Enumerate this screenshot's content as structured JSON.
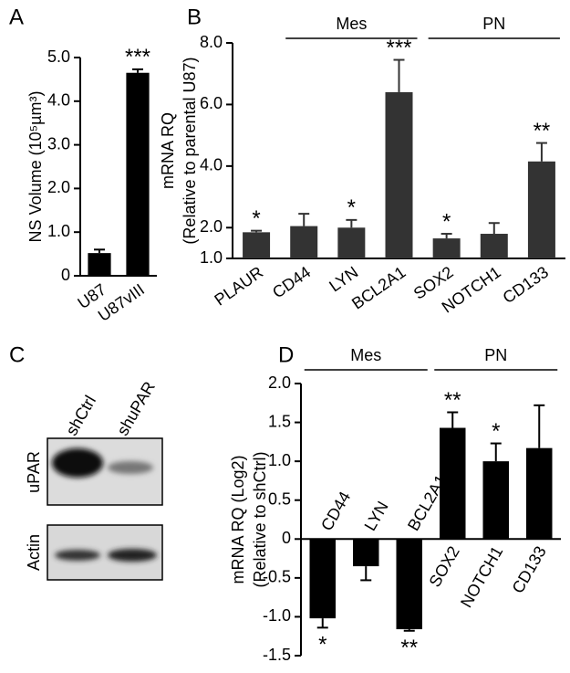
{
  "chart_data": [
    {
      "type": "bar",
      "panel": "A",
      "ylabel": [
        "NS Volume (10⁵µm³)"
      ],
      "categories": [
        "U87",
        "U87vIII"
      ],
      "values": [
        0.52,
        4.65
      ],
      "errors": [
        0.08,
        0.08
      ],
      "significance": [
        null,
        "***"
      ],
      "color": "#000000",
      "ylim": [
        0,
        5
      ],
      "yticks": [
        0,
        {
          "value": 1,
          "label": "1.0"
        },
        {
          "value": 2,
          "label": "2.0"
        },
        {
          "value": 3,
          "label": "3.0"
        },
        {
          "value": 4,
          "label": "4.0"
        },
        {
          "value": 5,
          "label": "5.0"
        }
      ]
    },
    {
      "type": "bar",
      "panel": "B",
      "ylabel": [
        "mRNA RQ",
        "(Relative to parental U87)"
      ],
      "categories": [
        "PLAUR",
        "CD44",
        "LYN",
        "BCL2A1",
        "SOX2",
        "NOTCH1",
        "CD133"
      ],
      "values": [
        1.85,
        2.05,
        2.0,
        6.4,
        1.65,
        1.8,
        4.15
      ],
      "errors": [
        0.05,
        0.4,
        0.25,
        1.05,
        0.15,
        0.35,
        0.6
      ],
      "significance": [
        "*",
        null,
        "*",
        "***",
        "*",
        null,
        "**"
      ],
      "color": "#333333",
      "groups": [
        {
          "label": "Mes",
          "from": 1,
          "to": 3
        },
        {
          "label": "PN",
          "from": 4,
          "to": 6
        }
      ],
      "ylim": [
        1,
        8
      ],
      "yticks": [
        {
          "value": 1,
          "label": "1.0"
        },
        {
          "value": 2,
          "label": "2.0"
        },
        {
          "value": 4,
          "label": "4.0"
        },
        {
          "value": 6,
          "label": "6.0"
        },
        {
          "value": 8,
          "label": "8.0"
        }
      ]
    },
    {
      "type": "bar",
      "panel": "D",
      "ylabel": [
        "mRNA RQ (Log2)",
        "(Relative to shCtrl)"
      ],
      "categories": [
        "CD44",
        "LYN",
        "BCL2A1",
        "SOX2",
        "NOTCH1",
        "CD133"
      ],
      "values": [
        -1.02,
        -0.35,
        -1.16,
        1.43,
        1.0,
        1.17
      ],
      "errors": [
        0.12,
        0.18,
        0.02,
        0.2,
        0.23,
        0.55
      ],
      "significance": [
        "*",
        null,
        "**",
        "**",
        "*",
        null
      ],
      "color": "#000000",
      "groups": [
        {
          "label": "Mes",
          "from": 0,
          "to": 2
        },
        {
          "label": "PN",
          "from": 3,
          "to": 5
        }
      ],
      "ylim": [
        -1.5,
        2
      ],
      "yticks": [
        {
          "value": -1.5,
          "label": "-1.5"
        },
        {
          "value": -1,
          "label": "-1.0"
        },
        {
          "value": -0.5,
          "label": "-0.5"
        },
        0,
        0.5,
        {
          "value": 1,
          "label": "1.0"
        },
        1.5,
        {
          "value": 2,
          "label": "2.0"
        }
      ]
    }
  ],
  "blot": {
    "panel": "C",
    "lanes": [
      "shCtrl",
      "shuPAR"
    ],
    "rows": [
      "uPAR",
      "Actin"
    ]
  }
}
